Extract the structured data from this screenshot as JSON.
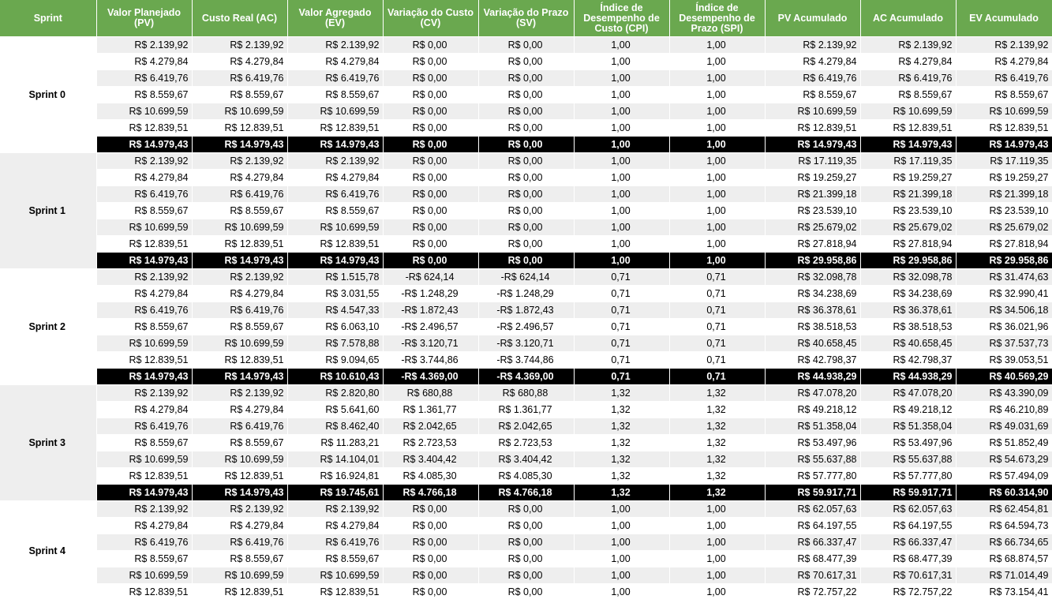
{
  "columns": [
    "Sprint",
    "Valor Planejado (PV)",
    "Custo Real (AC)",
    "Valor Agregado (EV)",
    "Variação do Custo (CV)",
    "Variação do Prazo (SV)",
    "Índice de Desempenho de Custo (CPI)",
    "Índice de Desempenho de Prazo (SPI)",
    "PV Acumulado",
    "AC Acumulado",
    "EV Acumulado"
  ],
  "sprints": [
    {
      "name": "Sprint 0",
      "rows": [
        [
          "R$ 2.139,92",
          "R$ 2.139,92",
          "R$ 2.139,92",
          "R$ 0,00",
          "R$ 0,00",
          "1,00",
          "1,00",
          "R$ 2.139,92",
          "R$ 2.139,92",
          "R$ 2.139,92"
        ],
        [
          "R$ 4.279,84",
          "R$ 4.279,84",
          "R$ 4.279,84",
          "R$ 0,00",
          "R$ 0,00",
          "1,00",
          "1,00",
          "R$ 4.279,84",
          "R$ 4.279,84",
          "R$ 4.279,84"
        ],
        [
          "R$ 6.419,76",
          "R$ 6.419,76",
          "R$ 6.419,76",
          "R$ 0,00",
          "R$ 0,00",
          "1,00",
          "1,00",
          "R$ 6.419,76",
          "R$ 6.419,76",
          "R$ 6.419,76"
        ],
        [
          "R$ 8.559,67",
          "R$ 8.559,67",
          "R$ 8.559,67",
          "R$ 0,00",
          "R$ 0,00",
          "1,00",
          "1,00",
          "R$ 8.559,67",
          "R$ 8.559,67",
          "R$ 8.559,67"
        ],
        [
          "R$ 10.699,59",
          "R$ 10.699,59",
          "R$ 10.699,59",
          "R$ 0,00",
          "R$ 0,00",
          "1,00",
          "1,00",
          "R$ 10.699,59",
          "R$ 10.699,59",
          "R$ 10.699,59"
        ],
        [
          "R$ 12.839,51",
          "R$ 12.839,51",
          "R$ 12.839,51",
          "R$ 0,00",
          "R$ 0,00",
          "1,00",
          "1,00",
          "R$ 12.839,51",
          "R$ 12.839,51",
          "R$ 12.839,51"
        ],
        [
          "R$ 14.979,43",
          "R$ 14.979,43",
          "R$ 14.979,43",
          "R$ 0,00",
          "R$ 0,00",
          "1,00",
          "1,00",
          "R$ 14.979,43",
          "R$ 14.979,43",
          "R$ 14.979,43"
        ]
      ]
    },
    {
      "name": "Sprint 1",
      "rows": [
        [
          "R$ 2.139,92",
          "R$ 2.139,92",
          "R$ 2.139,92",
          "R$ 0,00",
          "R$ 0,00",
          "1,00",
          "1,00",
          "R$ 17.119,35",
          "R$ 17.119,35",
          "R$ 17.119,35"
        ],
        [
          "R$ 4.279,84",
          "R$ 4.279,84",
          "R$ 4.279,84",
          "R$ 0,00",
          "R$ 0,00",
          "1,00",
          "1,00",
          "R$ 19.259,27",
          "R$ 19.259,27",
          "R$ 19.259,27"
        ],
        [
          "R$ 6.419,76",
          "R$ 6.419,76",
          "R$ 6.419,76",
          "R$ 0,00",
          "R$ 0,00",
          "1,00",
          "1,00",
          "R$ 21.399,18",
          "R$ 21.399,18",
          "R$ 21.399,18"
        ],
        [
          "R$ 8.559,67",
          "R$ 8.559,67",
          "R$ 8.559,67",
          "R$ 0,00",
          "R$ 0,00",
          "1,00",
          "1,00",
          "R$ 23.539,10",
          "R$ 23.539,10",
          "R$ 23.539,10"
        ],
        [
          "R$ 10.699,59",
          "R$ 10.699,59",
          "R$ 10.699,59",
          "R$ 0,00",
          "R$ 0,00",
          "1,00",
          "1,00",
          "R$ 25.679,02",
          "R$ 25.679,02",
          "R$ 25.679,02"
        ],
        [
          "R$ 12.839,51",
          "R$ 12.839,51",
          "R$ 12.839,51",
          "R$ 0,00",
          "R$ 0,00",
          "1,00",
          "1,00",
          "R$ 27.818,94",
          "R$ 27.818,94",
          "R$ 27.818,94"
        ],
        [
          "R$ 14.979,43",
          "R$ 14.979,43",
          "R$ 14.979,43",
          "R$ 0,00",
          "R$ 0,00",
          "1,00",
          "1,00",
          "R$ 29.958,86",
          "R$ 29.958,86",
          "R$ 29.958,86"
        ]
      ]
    },
    {
      "name": "Sprint 2",
      "rows": [
        [
          "R$ 2.139,92",
          "R$ 2.139,92",
          "R$ 1.515,78",
          "-R$ 624,14",
          "-R$ 624,14",
          "0,71",
          "0,71",
          "R$ 32.098,78",
          "R$ 32.098,78",
          "R$ 31.474,63"
        ],
        [
          "R$ 4.279,84",
          "R$ 4.279,84",
          "R$ 3.031,55",
          "-R$ 1.248,29",
          "-R$ 1.248,29",
          "0,71",
          "0,71",
          "R$ 34.238,69",
          "R$ 34.238,69",
          "R$ 32.990,41"
        ],
        [
          "R$ 6.419,76",
          "R$ 6.419,76",
          "R$ 4.547,33",
          "-R$ 1.872,43",
          "-R$ 1.872,43",
          "0,71",
          "0,71",
          "R$ 36.378,61",
          "R$ 36.378,61",
          "R$ 34.506,18"
        ],
        [
          "R$ 8.559,67",
          "R$ 8.559,67",
          "R$ 6.063,10",
          "-R$ 2.496,57",
          "-R$ 2.496,57",
          "0,71",
          "0,71",
          "R$ 38.518,53",
          "R$ 38.518,53",
          "R$ 36.021,96"
        ],
        [
          "R$ 10.699,59",
          "R$ 10.699,59",
          "R$ 7.578,88",
          "-R$ 3.120,71",
          "-R$ 3.120,71",
          "0,71",
          "0,71",
          "R$ 40.658,45",
          "R$ 40.658,45",
          "R$ 37.537,73"
        ],
        [
          "R$ 12.839,51",
          "R$ 12.839,51",
          "R$ 9.094,65",
          "-R$ 3.744,86",
          "-R$ 3.744,86",
          "0,71",
          "0,71",
          "R$ 42.798,37",
          "R$ 42.798,37",
          "R$ 39.053,51"
        ],
        [
          "R$ 14.979,43",
          "R$ 14.979,43",
          "R$ 10.610,43",
          "-R$ 4.369,00",
          "-R$ 4.369,00",
          "0,71",
          "0,71",
          "R$ 44.938,29",
          "R$ 44.938,29",
          "R$ 40.569,29"
        ]
      ]
    },
    {
      "name": "Sprint 3",
      "rows": [
        [
          "R$ 2.139,92",
          "R$ 2.139,92",
          "R$ 2.820,80",
          "R$ 680,88",
          "R$ 680,88",
          "1,32",
          "1,32",
          "R$ 47.078,20",
          "R$ 47.078,20",
          "R$ 43.390,09"
        ],
        [
          "R$ 4.279,84",
          "R$ 4.279,84",
          "R$ 5.641,60",
          "R$ 1.361,77",
          "R$ 1.361,77",
          "1,32",
          "1,32",
          "R$ 49.218,12",
          "R$ 49.218,12",
          "R$ 46.210,89"
        ],
        [
          "R$ 6.419,76",
          "R$ 6.419,76",
          "R$ 8.462,40",
          "R$ 2.042,65",
          "R$ 2.042,65",
          "1,32",
          "1,32",
          "R$ 51.358,04",
          "R$ 51.358,04",
          "R$ 49.031,69"
        ],
        [
          "R$ 8.559,67",
          "R$ 8.559,67",
          "R$ 11.283,21",
          "R$ 2.723,53",
          "R$ 2.723,53",
          "1,32",
          "1,32",
          "R$ 53.497,96",
          "R$ 53.497,96",
          "R$ 51.852,49"
        ],
        [
          "R$ 10.699,59",
          "R$ 10.699,59",
          "R$ 14.104,01",
          "R$ 3.404,42",
          "R$ 3.404,42",
          "1,32",
          "1,32",
          "R$ 55.637,88",
          "R$ 55.637,88",
          "R$ 54.673,29"
        ],
        [
          "R$ 12.839,51",
          "R$ 12.839,51",
          "R$ 16.924,81",
          "R$ 4.085,30",
          "R$ 4.085,30",
          "1,32",
          "1,32",
          "R$ 57.777,80",
          "R$ 57.777,80",
          "R$ 57.494,09"
        ],
        [
          "R$ 14.979,43",
          "R$ 14.979,43",
          "R$ 19.745,61",
          "R$ 4.766,18",
          "R$ 4.766,18",
          "1,32",
          "1,32",
          "R$ 59.917,71",
          "R$ 59.917,71",
          "R$ 60.314,90"
        ]
      ]
    },
    {
      "name": "Sprint 4",
      "rows": [
        [
          "R$ 2.139,92",
          "R$ 2.139,92",
          "R$ 2.139,92",
          "R$ 0,00",
          "R$ 0,00",
          "1,00",
          "1,00",
          "R$ 62.057,63",
          "R$ 62.057,63",
          "R$ 62.454,81"
        ],
        [
          "R$ 4.279,84",
          "R$ 4.279,84",
          "R$ 4.279,84",
          "R$ 0,00",
          "R$ 0,00",
          "1,00",
          "1,00",
          "R$ 64.197,55",
          "R$ 64.197,55",
          "R$ 64.594,73"
        ],
        [
          "R$ 6.419,76",
          "R$ 6.419,76",
          "R$ 6.419,76",
          "R$ 0,00",
          "R$ 0,00",
          "1,00",
          "1,00",
          "R$ 66.337,47",
          "R$ 66.337,47",
          "R$ 66.734,65"
        ],
        [
          "R$ 8.559,67",
          "R$ 8.559,67",
          "R$ 8.559,67",
          "R$ 0,00",
          "R$ 0,00",
          "1,00",
          "1,00",
          "R$ 68.477,39",
          "R$ 68.477,39",
          "R$ 68.874,57"
        ],
        [
          "R$ 10.699,59",
          "R$ 10.699,59",
          "R$ 10.699,59",
          "R$ 0,00",
          "R$ 0,00",
          "1,00",
          "1,00",
          "R$ 70.617,31",
          "R$ 70.617,31",
          "R$ 71.014,49"
        ],
        [
          "R$ 12.839,51",
          "R$ 12.839,51",
          "R$ 12.839,51",
          "R$ 0,00",
          "R$ 0,00",
          "1,00",
          "1,00",
          "R$ 72.757,22",
          "R$ 72.757,22",
          "R$ 73.154,41"
        ]
      ]
    }
  ],
  "colors": {
    "header_bg": "#6aa84f",
    "header_text": "#ffffff",
    "total_bg": "#000000",
    "total_text": "#ffffff",
    "band_shade": "#eeeeee"
  }
}
